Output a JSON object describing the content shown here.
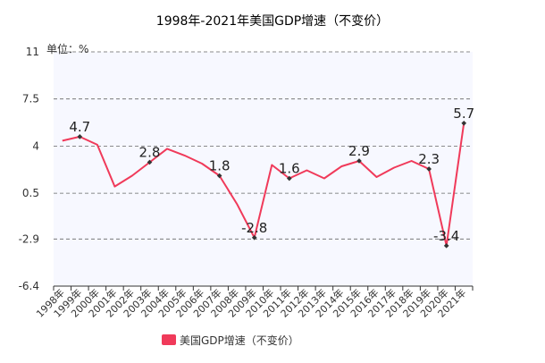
{
  "chart_data": {
    "type": "line",
    "title": "1998年-2021年美国GDP增速（不变价）",
    "unit_label": "单位：%",
    "ylim": [
      -6.4,
      11
    ],
    "y_ticks": [
      "11",
      "7.5",
      "4",
      "0.5",
      "-2.9",
      "-6.4"
    ],
    "y_tick_values": [
      11,
      7.5,
      4,
      0.5,
      -2.9,
      -6.4
    ],
    "categories": [
      "1998年",
      "1999年",
      "2000年",
      "2001年",
      "2002年",
      "2003年",
      "2004年",
      "2005年",
      "2006年",
      "2007年",
      "2008年",
      "2009年",
      "2010年",
      "2011年",
      "2012年",
      "2013年",
      "2014年",
      "2015年",
      "2016年",
      "2017年",
      "2018年",
      "2019年",
      "2020年",
      "2021年"
    ],
    "series": [
      {
        "name": "美国GDP增速（不变价）",
        "color": "#f03a5a",
        "values": [
          4.4,
          4.7,
          4.1,
          1.0,
          1.8,
          2.8,
          3.8,
          3.3,
          2.7,
          1.8,
          -0.3,
          -2.8,
          2.6,
          1.6,
          2.2,
          1.6,
          2.5,
          2.9,
          1.7,
          2.4,
          2.9,
          2.3,
          -3.4,
          5.7
        ],
        "labeled_indices": [
          1,
          5,
          9,
          11,
          13,
          17,
          21,
          22,
          23
        ],
        "data_labels": [
          "4.7",
          "2.8",
          "1.8",
          "-2.8",
          "1.6",
          "2.9",
          "2.3",
          "-3.4",
          "5.7"
        ]
      }
    ],
    "grid": "horizontal dashed",
    "legend": "bottom-center"
  }
}
